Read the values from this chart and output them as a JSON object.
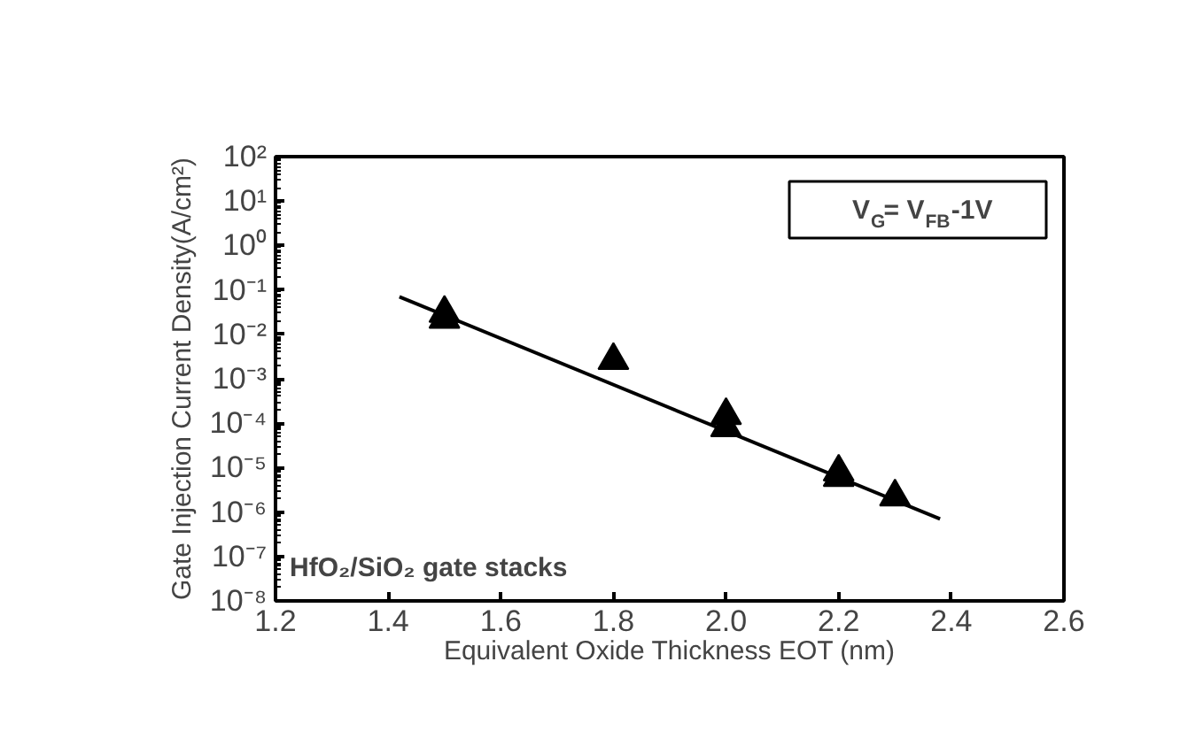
{
  "chart_data": {
    "type": "scatter",
    "xlabel": "Equivalent Oxide Thickness EOT (nm)",
    "ylabel": "Gate Injection Current Density(A/cm²)",
    "log": "y",
    "grid": false,
    "marker": "triangle",
    "xlim": [
      1.2,
      2.6
    ],
    "xticks": [
      1.2,
      1.4,
      1.6,
      1.8,
      {
        "value": 2,
        "label": "2.0"
      },
      2.2,
      2.4,
      2.6
    ],
    "ylim": [
      1e-08,
      100
    ],
    "yticks": [
      {
        "value": 1e-08,
        "label": "10⁻⁸"
      },
      {
        "value": 1e-07,
        "label": "10⁻⁷"
      },
      {
        "value": 1e-06,
        "label": "10⁻⁶"
      },
      {
        "value": 1e-05,
        "label": "10⁻⁵"
      },
      {
        "value": 0.0001,
        "label": "10⁻⁴"
      },
      {
        "value": 0.001,
        "label": "10⁻³"
      },
      {
        "value": 0.01,
        "label": "10⁻²"
      },
      {
        "value": 0.1,
        "label": "10⁻¹"
      },
      {
        "value": 1,
        "label": "10⁰"
      },
      {
        "value": 10,
        "label": "10¹"
      },
      {
        "value": 100,
        "label": "10²"
      }
    ],
    "series": [
      {
        "color": "#000000",
        "x": [
          1.5,
          1.5,
          1.8,
          2.0,
          2.0,
          2.2,
          2.2,
          2.3
        ],
        "values": [
          0.03,
          0.022,
          0.0026,
          0.00015,
          8e-05,
          8e-06,
          6e-06,
          2.2e-06
        ]
      },
      {
        "type": "line",
        "marker": "none",
        "color": "#000000",
        "x": [
          1.42,
          2.38
        ],
        "values": [
          0.07,
          7e-07
        ]
      }
    ],
    "annotations": [
      "V$_{G}$= V$_{FB}$-1V",
      "HfO₂/SiO₂ gate stacks"
    ]
  }
}
